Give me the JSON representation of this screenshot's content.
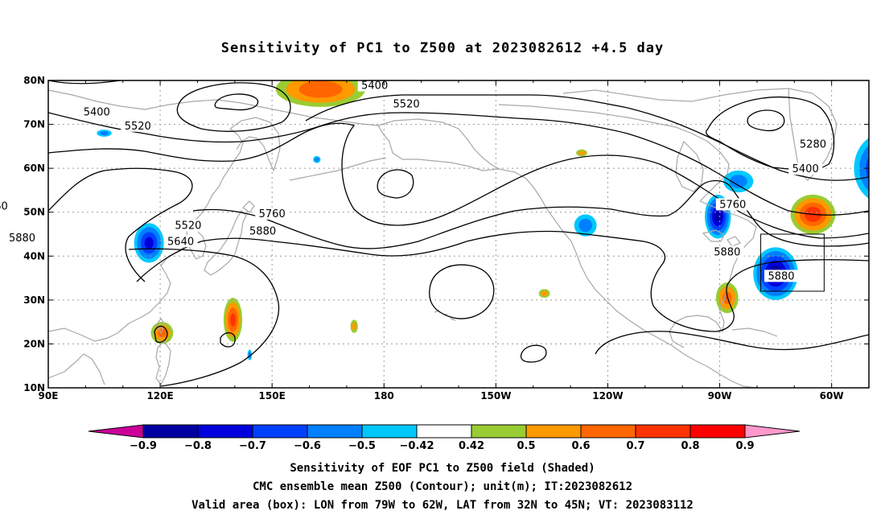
{
  "title": "Sensitivity of PC1 to Z500 at 2023082612 +4.5 day",
  "map": {
    "lat_labels": [
      "80N",
      "70N",
      "60N",
      "50N",
      "40N",
      "30N",
      "20N",
      "10N"
    ],
    "lon_labels": [
      "90E",
      "120E",
      "150E",
      "180",
      "150W",
      "120W",
      "90W",
      "60W"
    ],
    "contour_labels": [
      {
        "text": "5400",
        "lon": 177.5,
        "lat": 78.8
      },
      {
        "text": "5520",
        "lon": 186,
        "lat": 74.6
      },
      {
        "text": "5400",
        "lon": 103,
        "lat": 72.8
      },
      {
        "text": "5520",
        "lon": 114,
        "lat": 69.6
      },
      {
        "text": "5640",
        "lon": 71,
        "lat": 65.8
      },
      {
        "text": "5760",
        "lon": -86.5,
        "lat": 51.7
      },
      {
        "text": "5760",
        "lon": 64.8,
        "lat": 60.2
      },
      {
        "text": "5280",
        "lon": -65,
        "lat": 65.4
      },
      {
        "text": "5400",
        "lon": -67,
        "lat": 59.8
      },
      {
        "text": "5760",
        "lon": 75.6,
        "lat": 51.3
      },
      {
        "text": "5760",
        "lon": 150,
        "lat": 49.6
      },
      {
        "text": "5520",
        "lon": 127.5,
        "lat": 46.9
      },
      {
        "text": "5880",
        "lon": 147.5,
        "lat": 45.6
      },
      {
        "text": "5640",
        "lon": 125.5,
        "lat": 43.3
      },
      {
        "text": "5880",
        "lon": 83,
        "lat": 44.1
      },
      {
        "text": "5880",
        "lon": -88,
        "lat": 40.9
      },
      {
        "text": "5880",
        "lon": -73.5,
        "lat": 35.4
      },
      {
        "text": "5880",
        "lon": 63,
        "lat": 11.8
      }
    ]
  },
  "colorbar": {
    "levels": [
      "-0.9",
      "-0.8",
      "-0.7",
      "-0.6",
      "-0.5",
      "-0.42",
      "0.42",
      "0.5",
      "0.6",
      "0.7",
      "0.8",
      "0.9"
    ],
    "colors": [
      "#0000a0",
      "#0000dc",
      "#0040ff",
      "#0080ff",
      "#00c8ff",
      "#ffffff",
      "#99cc33",
      "#ff9900",
      "#ff6600",
      "#ff3300",
      "#ff0000"
    ],
    "low_color": "#cc0099",
    "high_color": "#ff99cc"
  },
  "captions": {
    "line1": "Sensitivity of EOF PC1 to Z500 field (Shaded)",
    "line2": "CMC ensemble mean Z500 (Contour); unit(m); IT:2023082612",
    "line3": "Valid area (box): LON from 79W to 62W, LAT from 32N to 45N; VT: 2023083112"
  },
  "valid_box": {
    "lon_west": -79,
    "lon_east": -62,
    "lat_south": 32,
    "lat_north": 45
  },
  "shaded_regions": [
    {
      "lon": 163,
      "lat": 78,
      "rx": 12,
      "ry": 4,
      "sign": "pos",
      "peak": 0.65
    },
    {
      "lon": 117,
      "lat": 43,
      "rx": 4,
      "ry": 4.5,
      "sign": "neg",
      "peak": -0.7
    },
    {
      "lon": 139.5,
      "lat": 25.5,
      "rx": 2.5,
      "ry": 5,
      "sign": "pos",
      "peak": 0.7
    },
    {
      "lon": 120.5,
      "lat": 22.5,
      "rx": 3,
      "ry": 2.5,
      "sign": "pos",
      "peak": 0.6
    },
    {
      "lon": -75,
      "lat": 36,
      "rx": 6,
      "ry": 6,
      "sign": "neg",
      "peak": -0.85
    },
    {
      "lon": -90.5,
      "lat": 49,
      "rx": 3.5,
      "ry": 5,
      "sign": "neg",
      "peak": -0.8
    },
    {
      "lon": -65,
      "lat": 49.5,
      "rx": 6,
      "ry": 4.5,
      "sign": "pos",
      "peak": 0.75
    },
    {
      "lon": -88,
      "lat": 30.5,
      "rx": 3,
      "ry": 3.5,
      "sign": "pos",
      "peak": 0.6
    },
    {
      "lon": -46,
      "lat": 60,
      "rx": 8,
      "ry": 8,
      "sign": "neg",
      "peak": -0.75
    },
    {
      "lon": -44,
      "lat": 27,
      "rx": 5,
      "ry": 5,
      "sign": "neg",
      "peak": -0.7
    },
    {
      "lon": -126,
      "lat": 47,
      "rx": 3,
      "ry": 2.5,
      "sign": "neg",
      "peak": -0.5
    },
    {
      "lon": -85,
      "lat": 57,
      "rx": 4,
      "ry": 2.5,
      "sign": "neg",
      "peak": -0.5
    },
    {
      "lon": -137,
      "lat": 31.5,
      "rx": 1.5,
      "ry": 1,
      "sign": "pos",
      "peak": 0.5
    },
    {
      "lon": -127,
      "lat": 63.5,
      "rx": 1.5,
      "ry": 0.8,
      "sign": "pos",
      "peak": 0.5
    },
    {
      "lon": 172,
      "lat": 24,
      "rx": 1,
      "ry": 1.5,
      "sign": "pos",
      "peak": 0.5
    },
    {
      "lon": 162,
      "lat": 62,
      "rx": 1,
      "ry": 0.8,
      "sign": "neg",
      "peak": -0.5
    },
    {
      "lon": 105,
      "lat": 68,
      "rx": 2,
      "ry": 0.8,
      "sign": "neg",
      "peak": -0.5
    },
    {
      "lon": 144,
      "lat": 17.5,
      "rx": 0.6,
      "ry": 1.2,
      "sign": "neg",
      "peak": -0.5
    }
  ]
}
